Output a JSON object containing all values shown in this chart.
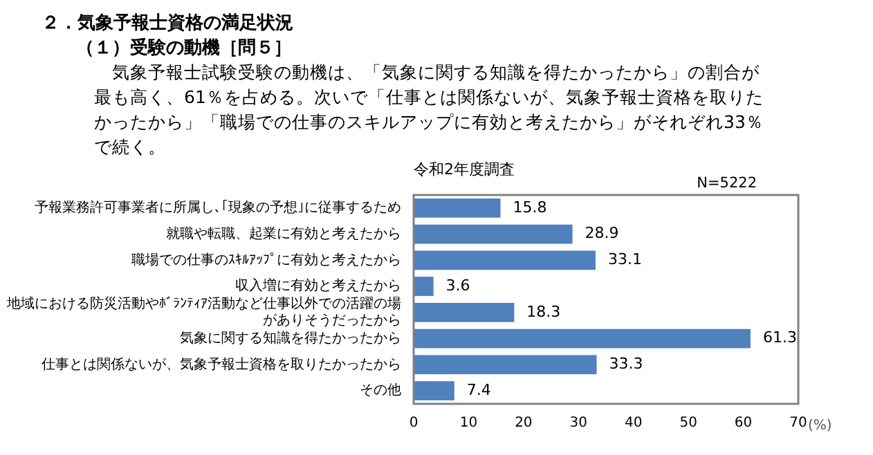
{
  "chart_data": {
    "type": "bar",
    "orientation": "horizontal",
    "title": "令和2年度調査",
    "xlabel": "(%)",
    "annotations": [
      "２．気象予報士資格の満足状況",
      "（１）受験の動機［問５］",
      "　気象予報士試験受験の動機は、「気象に関する知識を得たかったから」の割合が最も高く、61％を占める。次いで「仕事とは関係ないが、気象予報士資格を取りたかったから」「職場での仕事のスキルアップに有効と考えたから」がそれぞれ33％で続く。",
      "N=5222"
    ],
    "categories": [
      "予報業務許可事業者に所属し､｢現象の予想｣に従事するため",
      "就職や転職、起業に有効と考えたから",
      "職場での仕事のｽｷﾙｱｯﾌﾟに有効と考えたから",
      "収入増に有効と考えたから",
      "地域における防災活動やﾎﾞﾗﾝﾃｨｱ活動など仕事以外での活躍の場がありそうだったから",
      "気象に関する知識を得たかったから",
      "仕事とは関係ないが、気象予報士資格を取りたかったから",
      "その他"
    ],
    "values": [
      15.8,
      28.9,
      33.1,
      3.6,
      18.3,
      61.3,
      33.3,
      7.4
    ],
    "color": "#4f81bd",
    "xlim": [
      0,
      70
    ],
    "xticks": [
      0,
      10,
      20,
      30,
      40,
      50,
      60,
      70
    ],
    "data_labels": true,
    "grid": false,
    "legend": false
  }
}
